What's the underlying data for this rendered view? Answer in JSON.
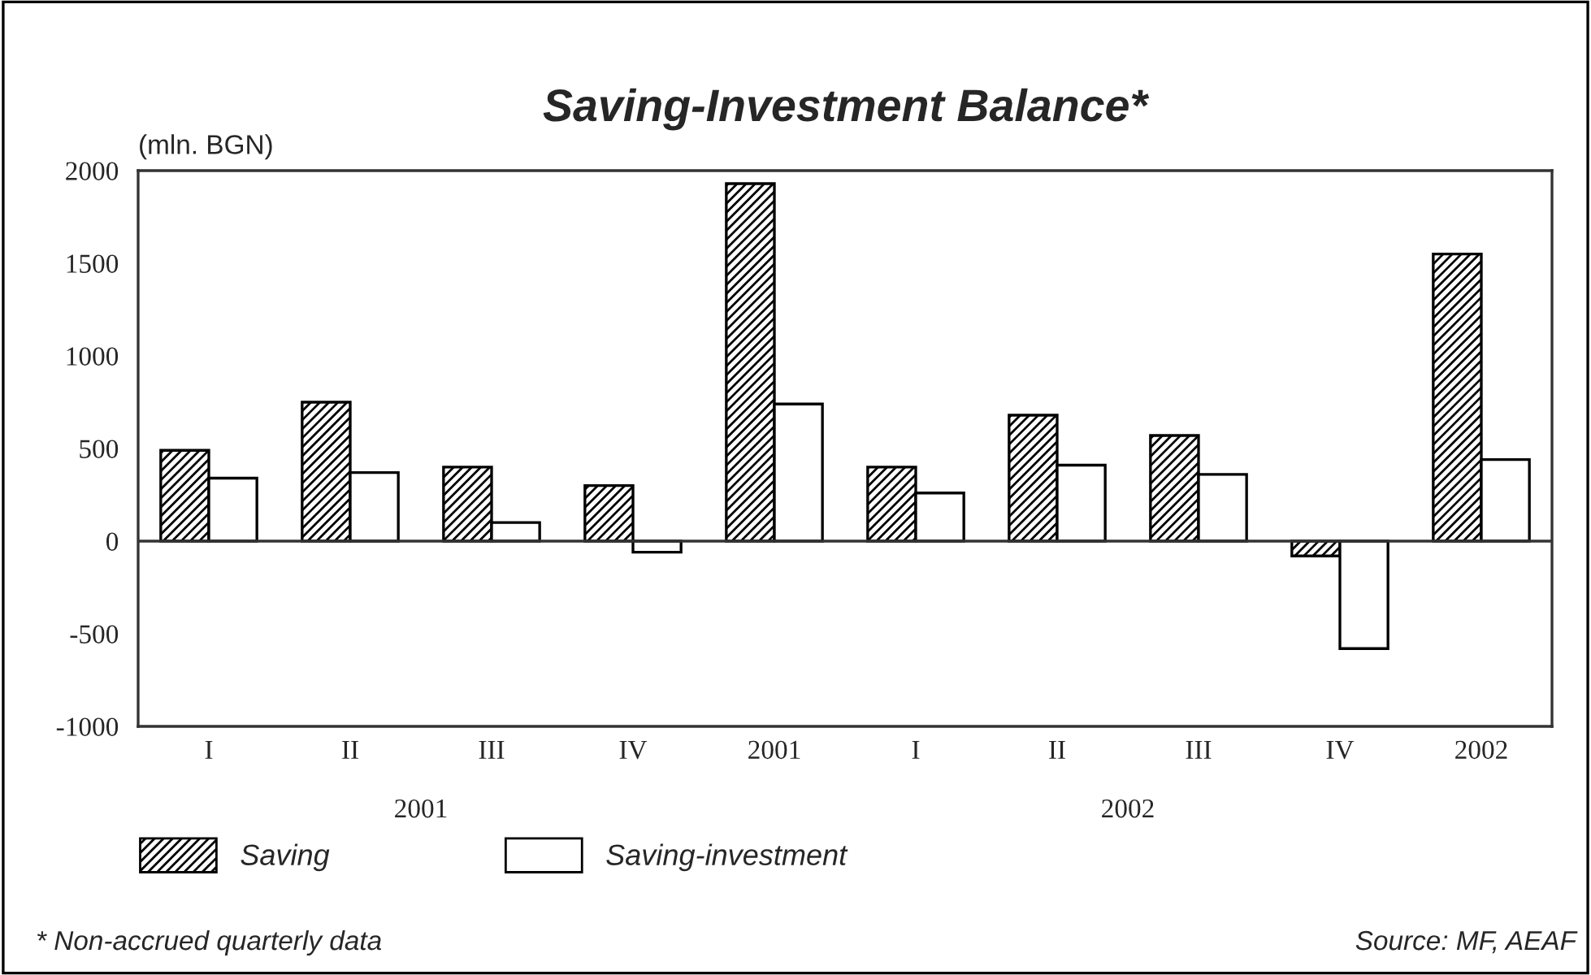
{
  "chart_data": {
    "type": "bar",
    "title": "Saving-Investment Balance*",
    "ylabel": "(mln. BGN)",
    "categories": [
      "I",
      "II",
      "III",
      "IV",
      "2001",
      "I",
      "II",
      "III",
      "IV",
      "2002"
    ],
    "series": [
      {
        "name": "Saving",
        "color": "#000000",
        "values": [
          490,
          750,
          400,
          300,
          1930,
          400,
          680,
          570,
          -80,
          1550
        ]
      },
      {
        "name": "Saving-investment",
        "color": "#ffffff",
        "values": [
          340,
          370,
          100,
          -60,
          740,
          260,
          410,
          360,
          -580,
          440
        ]
      }
    ],
    "ref_lines": [
      {
        "axis": "y",
        "value": 0,
        "color": "#333333"
      }
    ],
    "ylim": [
      -1000,
      2000
    ],
    "yticks": [
      -1000,
      -500,
      0,
      500,
      1000,
      1500,
      2000
    ],
    "grid": false,
    "legend": "bottom",
    "annotations": [
      "2001",
      "2002",
      "* Non-accrued quarterly data",
      "Source: MF, AEAF"
    ]
  }
}
